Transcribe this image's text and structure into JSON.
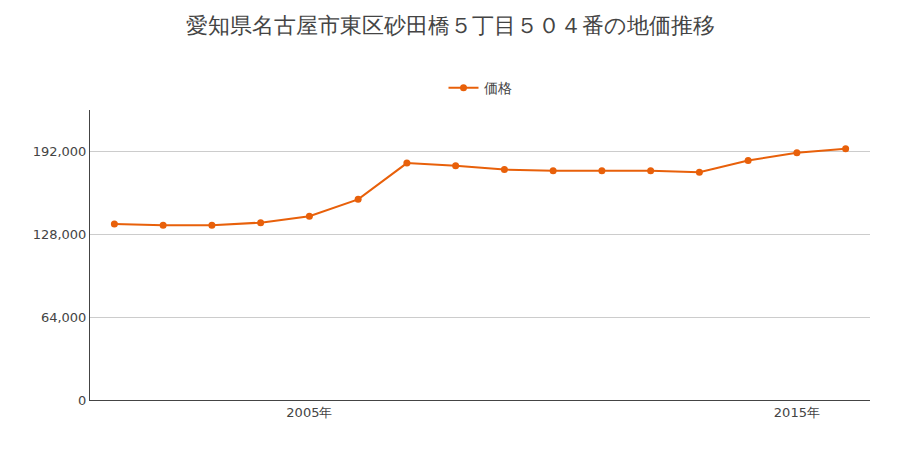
{
  "chart_data": {
    "type": "line",
    "title": "愛知県名古屋市東区砂田橋５丁目５０４番の地価推移",
    "x": [
      2001,
      2002,
      2003,
      2004,
      2005,
      2006,
      2007,
      2008,
      2009,
      2010,
      2011,
      2012,
      2013,
      2014,
      2015,
      2016
    ],
    "series": [
      {
        "name": "価格",
        "color": "#e8600a",
        "marker": "circle",
        "values": [
          136000,
          135000,
          135000,
          137000,
          142000,
          155000,
          183000,
          181000,
          178000,
          177000,
          177000,
          177000,
          176000,
          185000,
          191000,
          194000
        ]
      }
    ],
    "xlim": [
      2000.5,
      2016.5
    ],
    "xticks": [
      {
        "value": 2005,
        "label": "2005年"
      },
      {
        "value": 2015,
        "label": "2015年"
      }
    ],
    "ylim": [
      0,
      224000
    ],
    "yticks": [
      0,
      {
        "value": 64000,
        "label": "64,000"
      },
      {
        "value": 128000,
        "label": "128,000"
      },
      {
        "value": 192000,
        "label": "192,000"
      }
    ],
    "grid": "y",
    "legend": "top"
  }
}
